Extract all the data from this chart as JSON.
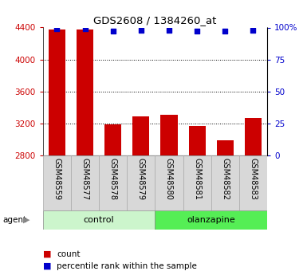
{
  "title": "GDS2608 / 1384260_at",
  "samples": [
    "GSM48559",
    "GSM48577",
    "GSM48578",
    "GSM48579",
    "GSM48580",
    "GSM48581",
    "GSM48582",
    "GSM48583"
  ],
  "counts": [
    4380,
    4380,
    3190,
    3290,
    3310,
    3170,
    2990,
    3270
  ],
  "percentile_ranks": [
    99,
    99,
    97,
    98,
    98,
    97,
    97,
    98
  ],
  "bar_color": "#CC0000",
  "dot_color": "#0000CC",
  "ylim_left": [
    2800,
    4400
  ],
  "ylim_right": [
    0,
    100
  ],
  "yticks_left": [
    2800,
    3200,
    3600,
    4000,
    4400
  ],
  "yticks_right": [
    0,
    25,
    50,
    75,
    100
  ],
  "ytick_labels_right": [
    "0",
    "25",
    "50",
    "75",
    "100%"
  ],
  "grid_linestyle": "dotted",
  "bar_width": 0.6,
  "agent_label": "agent",
  "legend_count_label": "count",
  "legend_pct_label": "percentile rank within the sample",
  "tick_color_left": "#CC0000",
  "tick_color_right": "#0000CC",
  "group_label_control": "control",
  "group_label_olanzapine": "olanzapine",
  "control_color": "#ccf5cc",
  "olanzapine_color": "#55ee55",
  "label_bg_color": "#d8d8d8"
}
